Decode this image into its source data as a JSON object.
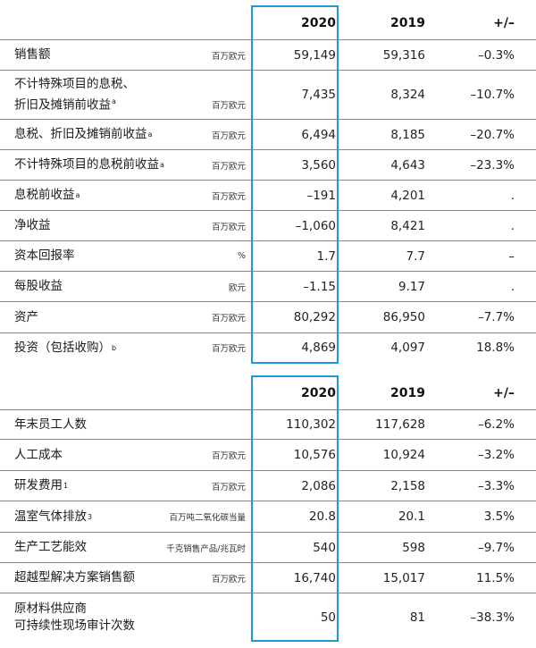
{
  "table1": {
    "header": {
      "y2020": "2020",
      "y2019": "2019",
      "change": "+/–"
    },
    "rows": [
      {
        "label": "销售额",
        "sup": "",
        "unit": "百万欧元",
        "v2020": "59,149",
        "v2019": "59,316",
        "change": "–0.3%"
      },
      {
        "label_line1": "不计特殊项目的息税、",
        "label_line2": "折旧及摊销前收益",
        "sup": "a",
        "unit": "百万欧元",
        "v2020": "7,435",
        "v2019": "8,324",
        "change": "–10.7%"
      },
      {
        "label": "息税、折旧及摊销前收益",
        "sup": "a",
        "unit": "百万欧元",
        "v2020": "6,494",
        "v2019": "8,185",
        "change": "–20.7%"
      },
      {
        "label": "不计特殊项目的息税前收益",
        "sup": "a",
        "unit": "百万欧元",
        "v2020": "3,560",
        "v2019": "4,643",
        "change": "–23.3%"
      },
      {
        "label": "息税前收益",
        "sup": "a",
        "unit": "百万欧元",
        "v2020": "–191",
        "v2019": "4,201",
        "change": "."
      },
      {
        "label": "净收益",
        "sup": "",
        "unit": "百万欧元",
        "v2020": "–1,060",
        "v2019": "8,421",
        "change": "."
      },
      {
        "label": "资本回报率",
        "sup": "",
        "unit": "%",
        "v2020": "1.7",
        "v2019": "7.7",
        "change": "–"
      },
      {
        "label": "每股收益",
        "sup": "",
        "unit": "欧元",
        "v2020": "–1.15",
        "v2019": "9.17",
        "change": "."
      },
      {
        "label": "资产",
        "sup": "",
        "unit": "百万欧元",
        "v2020": "80,292",
        "v2019": "86,950",
        "change": "–7.7%"
      },
      {
        "label": "投资（包括收购）",
        "sup": "b",
        "unit": "百万欧元",
        "v2020": "4,869",
        "v2019": "4,097",
        "change": "18.8%"
      }
    ]
  },
  "table2": {
    "header": {
      "y2020": "2020",
      "y2019": "2019",
      "change": "+/–"
    },
    "rows": [
      {
        "label": "年末员工人数",
        "sup": "",
        "unit": "",
        "v2020": "110,302",
        "v2019": "117,628",
        "change": "–6.2%"
      },
      {
        "label": "人工成本",
        "sup": "",
        "unit": "百万欧元",
        "v2020": "10,576",
        "v2019": "10,924",
        "change": "–3.2%"
      },
      {
        "label": "研发费用",
        "sup": "1",
        "unit": "百万欧元",
        "v2020": "2,086",
        "v2019": "2,158",
        "change": "–3.3%"
      },
      {
        "label": "温室气体排放",
        "sup": "3",
        "unit": "百万吨二氧化碳当量",
        "v2020": "20.8",
        "v2019": "20.1",
        "change": "3.5%"
      },
      {
        "label": "生产工艺能效",
        "sup": "",
        "unit": "千克销售产品/兆瓦时",
        "v2020": "540",
        "v2019": "598",
        "change": "–9.7%"
      },
      {
        "label": "超越型解决方案销售额",
        "sup": "",
        "unit": "百万欧元",
        "v2020": "16,740",
        "v2019": "15,017",
        "change": "11.5%"
      },
      {
        "label_line1": "原材料供应商",
        "label_line2": "可持续性现场审计次数",
        "sup": "",
        "unit": "",
        "v2020": "50",
        "v2019": "81",
        "change": "–38.3%"
      }
    ]
  }
}
